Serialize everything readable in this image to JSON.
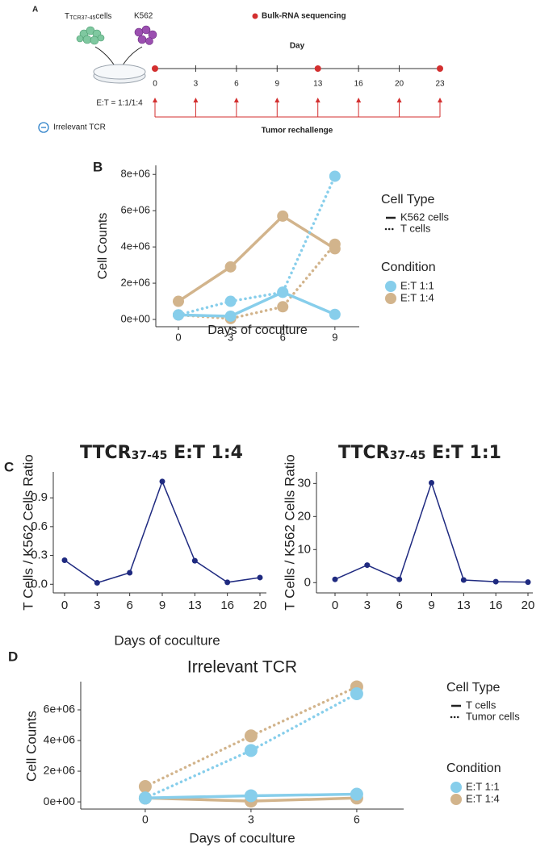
{
  "panel_labels": [
    "A",
    "B",
    "C",
    "D"
  ],
  "timeline": {
    "t_cell_main": "T",
    "t_cell_sub": "TCR37-45",
    "t_cell_rest": "cells",
    "tumor_label": "K562",
    "ratio": "E:T = 1:1/1:4",
    "control_label": "Irrelevant TCR",
    "sequencing_label": "Bulk-RNA sequencing",
    "axis_title": "Day",
    "days": [
      0,
      3,
      6,
      9,
      13,
      16,
      20,
      23
    ],
    "sequencing_days": [
      0,
      13,
      23
    ],
    "rechallenge_label": "Tumor rechallenge"
  },
  "chart_data": [
    {
      "type": "line",
      "xlabel": "Days of coculture",
      "ylabel": "Cell Counts",
      "x": [
        0,
        3,
        6,
        9
      ],
      "xlim": [
        -1.3,
        10.4
      ],
      "xticks": [
        0,
        3,
        6,
        9
      ],
      "ylim": [
        -400000,
        8500000
      ],
      "yticks": [
        {
          "value": 0,
          "label": "0e+00"
        },
        {
          "value": 2000000,
          "label": "2e+06"
        },
        {
          "value": 4000000,
          "label": "4e+06"
        },
        {
          "value": 6000000,
          "label": "6e+06"
        },
        {
          "value": 8000000,
          "label": "8e+06"
        }
      ],
      "legend": {
        "cell_type_title": "Cell Type",
        "cell_types": [
          "K562 cells",
          "T cells"
        ],
        "cell_type_dashes": [
          "solid",
          "dotted"
        ],
        "condition_title": "Condition",
        "conditions": [
          "E:T 1:1",
          "E:T 1:4"
        ],
        "condition_colors": [
          "#87ceeb",
          "#d2b48c"
        ]
      },
      "series": [
        {
          "cell_type": 0,
          "condition": 1,
          "values": [
            1000000,
            2900000,
            5700000,
            3900000
          ]
        },
        {
          "cell_type": 1,
          "condition": 1,
          "values": [
            250000,
            50000,
            700000,
            4150000
          ]
        },
        {
          "cell_type": 0,
          "condition": 0,
          "values": [
            250000,
            180000,
            1500000,
            280000
          ]
        },
        {
          "cell_type": 1,
          "condition": 0,
          "values": [
            250000,
            1000000,
            1500000,
            7900000
          ]
        }
      ]
    },
    {
      "type": "line",
      "title": {
        "main": "TTCR",
        "sub": "37-45",
        "rest": " E:T 1:4"
      },
      "xlabel": "Days of coculture",
      "ylabel": "T Cells / K562 Cells Ratio",
      "categories": [
        0,
        3,
        6,
        9,
        13,
        16,
        20
      ],
      "values": [
        0.25,
        0.015,
        0.12,
        1.07,
        0.245,
        0.02,
        0.07
      ],
      "color": "#1f2a80",
      "ylim": [
        -0.09,
        1.17
      ],
      "yticks": [
        {
          "value": 0,
          "label": "0.0"
        },
        0.3,
        0.6,
        0.9
      ]
    },
    {
      "type": "line",
      "title": {
        "main": "TTCR",
        "sub": "37-45",
        "rest": " E:T 1:1"
      },
      "ylabel": "T Cells / K562 Cells Ratio",
      "categories": [
        0,
        3,
        6,
        9,
        13,
        16,
        20
      ],
      "values": [
        1.0,
        5.3,
        1.0,
        30.2,
        0.8,
        0.3,
        0.15
      ],
      "color": "#1f2a80",
      "ylim": [
        -3.1,
        33.5
      ],
      "yticks": [
        0,
        10,
        20,
        30
      ]
    },
    {
      "type": "line",
      "title": "Irrelevant TCR",
      "xlabel": "Days of coculture",
      "ylabel": "Cell Counts",
      "x": [
        0,
        3,
        6
      ],
      "xlim": [
        -1.83,
        7.33
      ],
      "xticks": [
        0,
        3,
        6
      ],
      "ylim": [
        -470000,
        7840000
      ],
      "yticks": [
        {
          "value": 0,
          "label": "0e+00"
        },
        {
          "value": 2000000,
          "label": "2e+06"
        },
        {
          "value": 4000000,
          "label": "4e+06"
        },
        {
          "value": 6000000,
          "label": "6e+06"
        }
      ],
      "legend": {
        "cell_type_title": "Cell Type",
        "cell_types": [
          "T cells",
          "Tumor cells"
        ],
        "cell_type_dashes": [
          "solid",
          "dotted"
        ],
        "condition_title": "Condition",
        "conditions": [
          "E:T 1:1",
          "E:T 1:4"
        ],
        "condition_colors": [
          "#87ceeb",
          "#d2b48c"
        ]
      },
      "series": [
        {
          "cell_type": 1,
          "condition": 1,
          "values": [
            1000000,
            4300000,
            7500000
          ]
        },
        {
          "cell_type": 1,
          "condition": 0,
          "values": [
            250000,
            3350000,
            7050000
          ]
        },
        {
          "cell_type": 0,
          "condition": 1,
          "values": [
            250000,
            50000,
            250000
          ]
        },
        {
          "cell_type": 0,
          "condition": 0,
          "values": [
            250000,
            400000,
            500000
          ]
        }
      ]
    }
  ]
}
